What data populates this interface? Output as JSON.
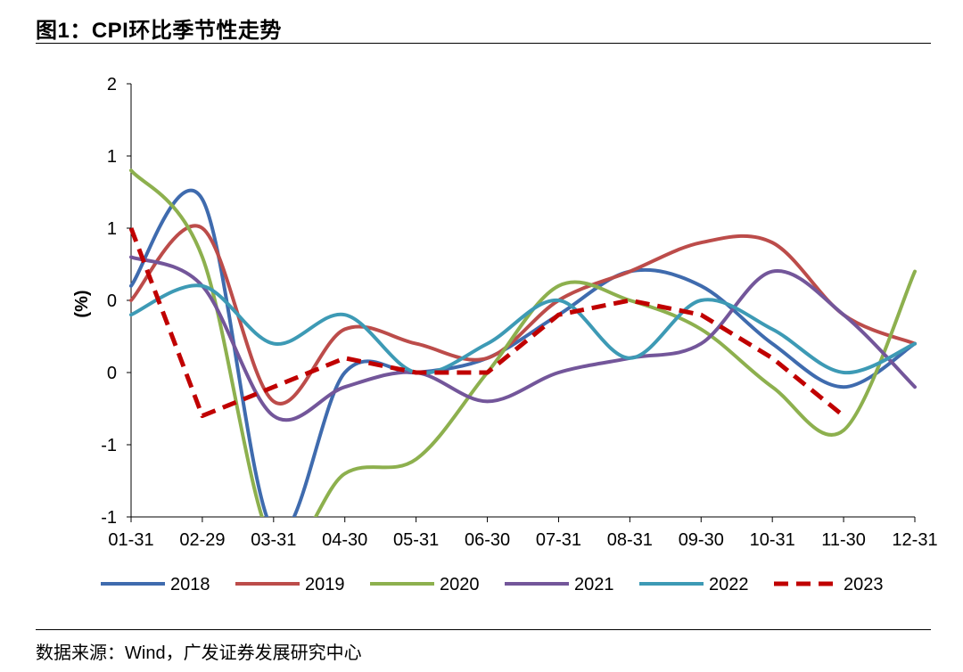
{
  "header": {
    "title": "图1：CPI环比季节性走势"
  },
  "footer": {
    "source": "数据来源：Wind，广发证券发展研究中心"
  },
  "chart_data": {
    "type": "line",
    "title": "",
    "xlabel": "",
    "ylabel": "(%)",
    "ylim": [
      -1,
      2
    ],
    "y_ticks": [
      2,
      1.5,
      1,
      0.5,
      0,
      -0.5,
      -1
    ],
    "y_tick_labels": [
      "2",
      "1",
      "1",
      "0",
      "0",
      "-1",
      "-1"
    ],
    "categories": [
      "01-31",
      "02-29",
      "03-31",
      "04-30",
      "05-31",
      "06-30",
      "07-31",
      "08-31",
      "09-30",
      "10-31",
      "11-30",
      "12-31"
    ],
    "grid": false,
    "legend_position": "bottom",
    "series": [
      {
        "name": "2018",
        "color": "#3F6BAE",
        "dashed": false,
        "smooth": true,
        "values": [
          0.6,
          1.2,
          -1.1,
          0.0,
          0.0,
          0.1,
          0.4,
          0.7,
          0.6,
          0.2,
          -0.1,
          0.2
        ]
      },
      {
        "name": "2019",
        "color": "#BC4C4A",
        "dashed": false,
        "smooth": true,
        "values": [
          0.5,
          1.0,
          -0.2,
          0.3,
          0.2,
          0.1,
          0.5,
          0.7,
          0.9,
          0.9,
          0.4,
          0.2
        ]
      },
      {
        "name": "2020",
        "color": "#8DB04E",
        "dashed": false,
        "smooth": true,
        "values": [
          1.4,
          0.8,
          -1.2,
          -0.7,
          -0.6,
          0.0,
          0.6,
          0.5,
          0.3,
          -0.1,
          -0.4,
          0.7
        ]
      },
      {
        "name": "2021",
        "color": "#73569A",
        "dashed": false,
        "smooth": true,
        "values": [
          0.8,
          0.6,
          -0.3,
          -0.1,
          0.0,
          -0.2,
          0.0,
          0.1,
          0.2,
          0.7,
          0.4,
          -0.1
        ]
      },
      {
        "name": "2022",
        "color": "#3D9AB5",
        "dashed": false,
        "smooth": true,
        "values": [
          0.4,
          0.6,
          0.2,
          0.4,
          0.0,
          0.2,
          0.5,
          0.1,
          0.5,
          0.3,
          0.0,
          0.2
        ]
      },
      {
        "name": "2023",
        "color": "#C00000",
        "dashed": true,
        "smooth": false,
        "values": [
          1.0,
          -0.3,
          -0.1,
          0.1,
          0.0,
          0.0,
          0.4,
          0.5,
          0.4,
          0.1,
          -0.3,
          null
        ]
      }
    ]
  }
}
